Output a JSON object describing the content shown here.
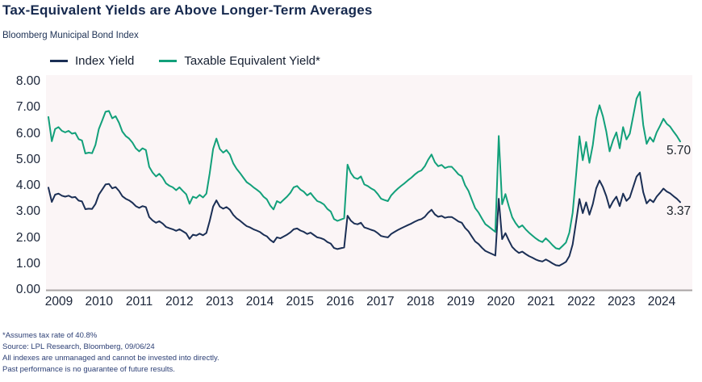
{
  "header": {
    "title": "Tax-Equivalent Yields are Above Longer-Term Averages",
    "subtitle": "Bloomberg Municipal Bond Index"
  },
  "legend": [
    {
      "label": "Index Yield",
      "color": "#1b2f55"
    },
    {
      "label": "Taxable Equivalent Yield*",
      "color": "#12a07a"
    }
  ],
  "colors": {
    "plot_background": "#fbf5f6",
    "axis_line": "#a9a4a4",
    "index_line": "#1b2f55",
    "taxable_line": "#12a07a"
  },
  "chart_data": {
    "type": "line",
    "title": "Tax-Equivalent Yields are Above Longer-Term Averages",
    "subtitle": "Bloomberg Municipal Bond Index",
    "x_labels": [
      "2009",
      "2010",
      "2011",
      "2012",
      "2013",
      "2014",
      "2015",
      "2016",
      "2017",
      "2018",
      "2019",
      "2020",
      "2021",
      "2022",
      "2023",
      "2024"
    ],
    "y_ticks": [
      "8.00",
      "7.00",
      "6.00",
      "5.00",
      "4.00",
      "3.00",
      "2.00",
      "1.00",
      "0.00"
    ],
    "ylim": [
      0,
      8
    ],
    "grid": false,
    "legend_position": "top-left",
    "series": [
      {
        "name": "Index Yield",
        "color": "#1b2f55",
        "end_label": "3.37",
        "values": [
          3.93,
          3.38,
          3.66,
          3.7,
          3.62,
          3.58,
          3.62,
          3.55,
          3.57,
          3.43,
          3.4,
          3.1,
          3.12,
          3.11,
          3.3,
          3.66,
          3.85,
          4.05,
          4.07,
          3.9,
          3.95,
          3.8,
          3.6,
          3.5,
          3.44,
          3.35,
          3.22,
          3.15,
          3.22,
          3.18,
          2.8,
          2.67,
          2.58,
          2.64,
          2.55,
          2.42,
          2.37,
          2.33,
          2.27,
          2.33,
          2.25,
          2.17,
          1.96,
          2.12,
          2.09,
          2.16,
          2.1,
          2.19,
          2.65,
          3.2,
          3.44,
          3.2,
          3.12,
          3.18,
          3.08,
          2.88,
          2.75,
          2.66,
          2.55,
          2.45,
          2.4,
          2.33,
          2.28,
          2.22,
          2.12,
          2.06,
          1.92,
          1.83,
          2.02,
          1.98,
          2.05,
          2.12,
          2.21,
          2.33,
          2.36,
          2.28,
          2.23,
          2.15,
          2.2,
          2.11,
          2.02,
          1.99,
          1.94,
          1.84,
          1.78,
          1.61,
          1.57,
          1.6,
          1.63,
          2.85,
          2.66,
          2.55,
          2.52,
          2.58,
          2.4,
          2.36,
          2.31,
          2.27,
          2.18,
          2.07,
          2.04,
          2.02,
          2.15,
          2.23,
          2.3,
          2.37,
          2.43,
          2.49,
          2.55,
          2.62,
          2.68,
          2.72,
          2.81,
          2.96,
          3.08,
          2.9,
          2.81,
          2.84,
          2.77,
          2.8,
          2.8,
          2.72,
          2.63,
          2.58,
          2.38,
          2.25,
          2.05,
          1.86,
          1.76,
          1.62,
          1.5,
          1.44,
          1.38,
          1.32,
          3.5,
          1.95,
          2.18,
          1.9,
          1.65,
          1.52,
          1.42,
          1.47,
          1.38,
          1.3,
          1.24,
          1.17,
          1.12,
          1.09,
          1.17,
          1.1,
          1.02,
          0.95,
          0.93,
          1.0,
          1.08,
          1.3,
          1.75,
          2.6,
          3.49,
          2.95,
          3.36,
          2.89,
          3.3,
          3.9,
          4.2,
          3.95,
          3.6,
          3.15,
          3.4,
          3.58,
          3.22,
          3.7,
          3.42,
          3.55,
          3.95,
          4.35,
          4.5,
          3.75,
          3.32,
          3.47,
          3.37,
          3.58,
          3.73,
          3.89,
          3.78,
          3.71,
          3.6,
          3.5,
          3.37
        ]
      },
      {
        "name": "Taxable Equivalent Yield*",
        "color": "#12a07a",
        "end_label": "5.70",
        "values": [
          6.64,
          5.71,
          6.18,
          6.25,
          6.11,
          6.05,
          6.11,
          6.0,
          6.03,
          5.79,
          5.74,
          5.24,
          5.27,
          5.25,
          5.57,
          6.18,
          6.5,
          6.84,
          6.87,
          6.59,
          6.67,
          6.42,
          6.08,
          5.91,
          5.81,
          5.66,
          5.44,
          5.32,
          5.44,
          5.37,
          4.73,
          4.51,
          4.36,
          4.46,
          4.31,
          4.09,
          4.0,
          3.94,
          3.83,
          3.94,
          3.8,
          3.67,
          3.31,
          3.58,
          3.53,
          3.65,
          3.55,
          3.7,
          4.48,
          5.41,
          5.81,
          5.41,
          5.27,
          5.37,
          5.2,
          4.86,
          4.65,
          4.49,
          4.31,
          4.14,
          4.05,
          3.94,
          3.85,
          3.75,
          3.58,
          3.48,
          3.24,
          3.09,
          3.41,
          3.34,
          3.46,
          3.58,
          3.73,
          3.94,
          3.99,
          3.85,
          3.77,
          3.63,
          3.72,
          3.56,
          3.41,
          3.36,
          3.28,
          3.11,
          3.01,
          2.72,
          2.65,
          2.7,
          2.75,
          4.81,
          4.49,
          4.31,
          4.26,
          4.36,
          4.05,
          3.99,
          3.9,
          3.83,
          3.68,
          3.5,
          3.45,
          3.41,
          3.63,
          3.77,
          3.89,
          4.0,
          4.1,
          4.21,
          4.31,
          4.43,
          4.53,
          4.59,
          4.75,
          5.0,
          5.2,
          4.9,
          4.75,
          4.8,
          4.68,
          4.73,
          4.73,
          4.59,
          4.44,
          4.36,
          4.02,
          3.8,
          3.46,
          3.14,
          2.97,
          2.74,
          2.53,
          2.43,
          2.33,
          2.23,
          5.91,
          3.29,
          3.68,
          3.21,
          2.79,
          2.57,
          2.4,
          2.48,
          2.33,
          2.2,
          2.09,
          1.98,
          1.89,
          1.84,
          1.98,
          1.86,
          1.72,
          1.6,
          1.57,
          1.69,
          1.82,
          2.2,
          2.96,
          4.39,
          5.9,
          4.98,
          5.68,
          4.88,
          5.57,
          6.59,
          7.09,
          6.67,
          6.08,
          5.32,
          5.74,
          6.05,
          5.44,
          6.25,
          5.78,
          6.0,
          6.67,
          7.35,
          7.6,
          6.33,
          5.61,
          5.86,
          5.69,
          6.05,
          6.3,
          6.57,
          6.38,
          6.27,
          6.08,
          5.91,
          5.7
        ]
      }
    ]
  },
  "footnotes": [
    "*Assumes tax rate of 40.8%",
    "Source: LPL Research, Bloomberg, 09/06/24",
    "All indexes are unmanaged and cannot be invested into directly.",
    "Past performance is no guarantee of future results."
  ]
}
